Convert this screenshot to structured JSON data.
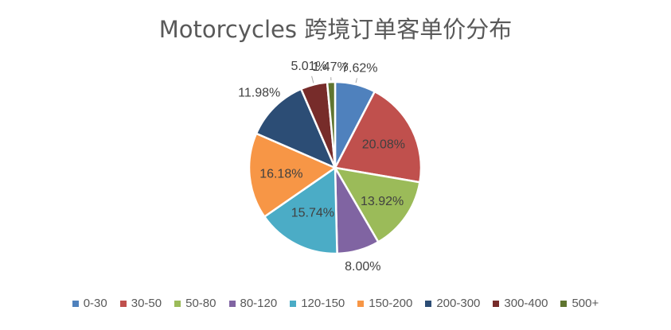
{
  "chart_data": {
    "type": "pie",
    "title": "Motorcycles 跨境订单客单价分布",
    "categories": [
      "0-30",
      "30-50",
      "50-80",
      "80-120",
      "120-150",
      "150-200",
      "200-300",
      "300-400",
      "500+"
    ],
    "values": [
      7.62,
      20.08,
      13.92,
      8.0,
      15.74,
      16.18,
      11.98,
      5.01,
      1.47
    ],
    "value_labels": [
      "7.62%",
      "20.08%",
      "13.92%",
      "8.00%",
      "15.74%",
      "16.18%",
      "11.98%",
      "5.01%",
      "1.47%"
    ],
    "colors": [
      "#4F81BD",
      "#C0504D",
      "#9BBB59",
      "#8064A2",
      "#4BACC6",
      "#F79646",
      "#2C4D75",
      "#772C2A",
      "#5F7530"
    ],
    "legend_position": "bottom",
    "start_angle_deg": 0,
    "direction": "clockwise"
  }
}
